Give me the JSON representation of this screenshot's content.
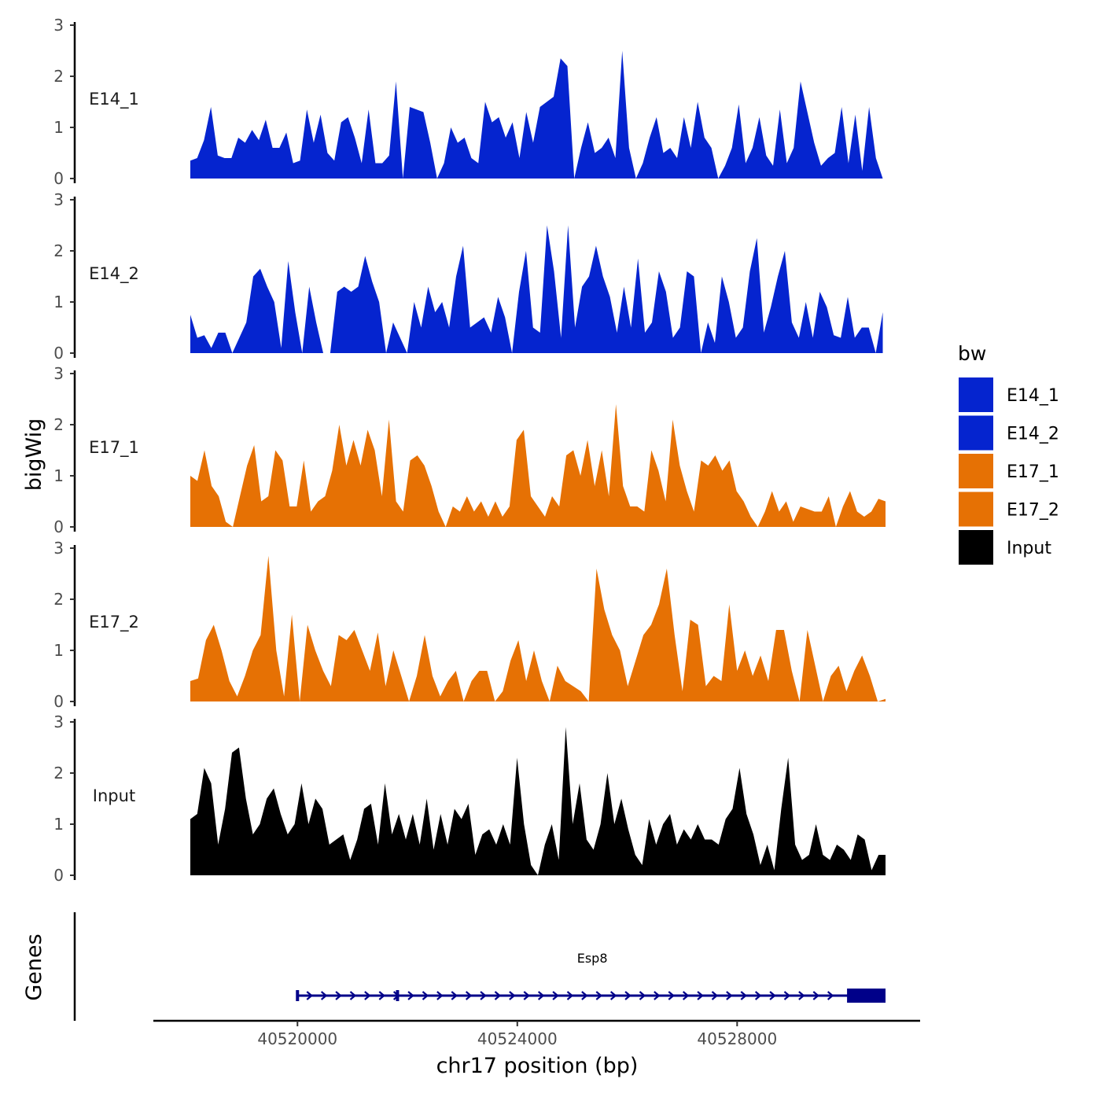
{
  "chart_data": {
    "type": "area",
    "x_range": [
      40518050,
      40530700
    ],
    "xlabel": "chr17 position (bp)",
    "ylabel": "bigWig",
    "ylim": [
      0,
      3
    ],
    "y_ticks": [
      0,
      1,
      2,
      3
    ],
    "x_ticks": [
      40520000,
      40524000,
      40528000
    ],
    "x_tick_labels": [
      "40520000",
      "40524000",
      "40528000"
    ],
    "colors": {
      "E14": "#0524cf",
      "E17": "#e67104",
      "Input": "#000000",
      "gene": "#000089"
    },
    "legend": {
      "title": "bw",
      "entries": [
        {
          "label": "E14_1",
          "color": "#0524cf"
        },
        {
          "label": "E14_2",
          "color": "#0524cf"
        },
        {
          "label": "E17_1",
          "color": "#e67104"
        },
        {
          "label": "E17_2",
          "color": "#e67104"
        },
        {
          "label": "Input",
          "color": "#000000"
        }
      ]
    },
    "genes_label": "Genes",
    "genes": [
      {
        "name": "Esp8",
        "start": 40520000,
        "end": 40530700,
        "exons": [
          [
            40520000,
            40520030
          ],
          [
            40521820,
            40521860
          ],
          [
            40530000,
            40530700
          ]
        ],
        "strand": "+"
      }
    ],
    "series": [
      {
        "name": "E14_1",
        "color": "#0524cf",
        "x_start": 40518050,
        "x_end": 40530650,
        "values": [
          0.35,
          0.4,
          0.75,
          1.4,
          0.45,
          0.4,
          0.4,
          0.8,
          0.7,
          0.95,
          0.75,
          1.15,
          0.6,
          0.6,
          0.9,
          0.3,
          0.35,
          1.35,
          0.7,
          1.25,
          0.5,
          0.35,
          1.1,
          1.2,
          0.8,
          0.3,
          1.35,
          0.3,
          0.3,
          0.45,
          1.9,
          0.0,
          1.4,
          1.35,
          1.3,
          0.7,
          0.0,
          0.3,
          1.0,
          0.7,
          0.8,
          0.4,
          0.3,
          1.5,
          1.1,
          1.2,
          0.8,
          1.1,
          0.4,
          1.3,
          0.7,
          1.4,
          1.5,
          1.6,
          2.35,
          2.2,
          0.0,
          0.6,
          1.1,
          0.5,
          0.6,
          0.8,
          0.4,
          2.5,
          0.6,
          0.0,
          0.3,
          0.8,
          1.2,
          0.5,
          0.6,
          0.4,
          1.2,
          0.6,
          1.5,
          0.8,
          0.6,
          0.0,
          0.25,
          0.6,
          1.45,
          0.3,
          0.6,
          1.2,
          0.45,
          0.25,
          1.35,
          0.3,
          0.6,
          1.9,
          1.3,
          0.7,
          0.25,
          0.4,
          0.5,
          1.4,
          0.3,
          1.25,
          0.15,
          1.4,
          0.4,
          0.0
        ]
      },
      {
        "name": "E14_2",
        "color": "#0524cf",
        "x_start": 40518050,
        "x_end": 40530650,
        "values": [
          0.75,
          0.3,
          0.35,
          0.1,
          0.4,
          0.4,
          0.0,
          0.3,
          0.6,
          1.5,
          1.65,
          1.3,
          1.0,
          0.1,
          1.8,
          0.8,
          0.0,
          1.3,
          0.6,
          0.0,
          0.0,
          1.2,
          1.3,
          1.2,
          1.3,
          1.9,
          1.4,
          1.0,
          0.0,
          0.6,
          0.3,
          0.0,
          1.0,
          0.5,
          1.3,
          0.8,
          1.0,
          0.5,
          1.5,
          2.1,
          0.5,
          0.6,
          0.7,
          0.4,
          1.1,
          0.7,
          0.0,
          1.2,
          2.0,
          0.5,
          0.4,
          2.5,
          1.6,
          0.3,
          2.5,
          0.5,
          1.3,
          1.5,
          2.1,
          1.5,
          1.1,
          0.4,
          1.3,
          0.5,
          1.85,
          0.4,
          0.6,
          1.6,
          1.2,
          0.3,
          0.5,
          1.6,
          1.5,
          0.0,
          0.6,
          0.2,
          1.5,
          1.0,
          0.3,
          0.5,
          1.6,
          2.25,
          0.4,
          0.9,
          1.5,
          2.0,
          0.6,
          0.3,
          1.0,
          0.3,
          1.2,
          0.9,
          0.35,
          0.3,
          1.1,
          0.3,
          0.5,
          0.5,
          0.0,
          0.8
        ]
      },
      {
        "name": "E17_1",
        "color": "#e67104",
        "x_start": 40518050,
        "x_end": 40530700,
        "values": [
          1.0,
          0.9,
          1.5,
          0.8,
          0.6,
          0.1,
          0.0,
          0.6,
          1.2,
          1.6,
          0.5,
          0.6,
          1.5,
          1.3,
          0.4,
          0.4,
          1.3,
          0.3,
          0.5,
          0.6,
          1.1,
          2.0,
          1.2,
          1.7,
          1.2,
          1.9,
          1.5,
          0.6,
          2.1,
          0.5,
          0.3,
          1.3,
          1.4,
          1.2,
          0.8,
          0.3,
          0.0,
          0.4,
          0.3,
          0.6,
          0.3,
          0.5,
          0.2,
          0.5,
          0.2,
          0.4,
          1.7,
          1.9,
          0.6,
          0.4,
          0.2,
          0.6,
          0.4,
          1.4,
          1.5,
          1.0,
          1.7,
          0.8,
          1.5,
          0.6,
          2.4,
          0.8,
          0.4,
          0.4,
          0.3,
          1.5,
          1.1,
          0.5,
          2.1,
          1.2,
          0.7,
          0.3,
          1.3,
          1.2,
          1.4,
          1.1,
          1.3,
          0.7,
          0.5,
          0.2,
          0.0,
          0.3,
          0.7,
          0.3,
          0.5,
          0.1,
          0.4,
          0.35,
          0.3,
          0.3,
          0.6,
          0.0,
          0.4,
          0.7,
          0.3,
          0.2,
          0.3,
          0.55,
          0.5
        ]
      },
      {
        "name": "E17_2",
        "color": "#e67104",
        "x_start": 40518050,
        "x_end": 40530700,
        "values": [
          0.4,
          0.45,
          1.2,
          1.5,
          1.0,
          0.4,
          0.1,
          0.5,
          1.0,
          1.3,
          2.85,
          1.0,
          0.1,
          1.7,
          0.0,
          1.5,
          1.0,
          0.6,
          0.3,
          1.3,
          1.2,
          1.4,
          1.0,
          0.6,
          1.35,
          0.3,
          1.0,
          0.5,
          0.0,
          0.5,
          1.3,
          0.5,
          0.1,
          0.4,
          0.6,
          0.0,
          0.4,
          0.6,
          0.6,
          0.0,
          0.2,
          0.8,
          1.2,
          0.4,
          1.0,
          0.4,
          0.0,
          0.7,
          0.4,
          0.3,
          0.2,
          0.0,
          2.6,
          1.8,
          1.3,
          1.0,
          0.3,
          0.8,
          1.3,
          1.5,
          1.9,
          2.6,
          1.3,
          0.2,
          1.6,
          1.5,
          0.3,
          0.5,
          0.4,
          1.9,
          0.6,
          1.0,
          0.5,
          0.9,
          0.4,
          1.4,
          1.4,
          0.6,
          0.0,
          1.4,
          0.7,
          0.0,
          0.5,
          0.7,
          0.2,
          0.6,
          0.9,
          0.5,
          0.0,
          0.05
        ]
      },
      {
        "name": "Input",
        "color": "#000000",
        "x_start": 40518050,
        "x_end": 40530700,
        "values": [
          1.1,
          1.2,
          2.1,
          1.8,
          0.6,
          1.3,
          2.4,
          2.5,
          1.5,
          0.8,
          1.0,
          1.5,
          1.7,
          1.2,
          0.8,
          1.0,
          1.8,
          1.0,
          1.5,
          1.3,
          0.6,
          0.7,
          0.8,
          0.3,
          0.7,
          1.3,
          1.4,
          0.6,
          1.8,
          0.8,
          1.2,
          0.7,
          1.2,
          0.6,
          1.5,
          0.5,
          1.2,
          0.6,
          1.3,
          1.1,
          1.4,
          0.4,
          0.8,
          0.9,
          0.6,
          1.0,
          0.6,
          2.3,
          1.0,
          0.2,
          0.0,
          0.6,
          1.0,
          0.3,
          2.9,
          1.0,
          1.8,
          0.7,
          0.5,
          1.0,
          2.0,
          1.0,
          1.5,
          0.9,
          0.4,
          0.2,
          1.1,
          0.6,
          1.0,
          1.2,
          0.6,
          0.9,
          0.7,
          1.0,
          0.7,
          0.7,
          0.6,
          1.1,
          1.3,
          2.1,
          1.2,
          0.8,
          0.2,
          0.6,
          0.1,
          1.3,
          2.3,
          0.6,
          0.3,
          0.4,
          1.0,
          0.4,
          0.3,
          0.6,
          0.5,
          0.3,
          0.8,
          0.7,
          0.1,
          0.4,
          0.4
        ]
      }
    ]
  }
}
